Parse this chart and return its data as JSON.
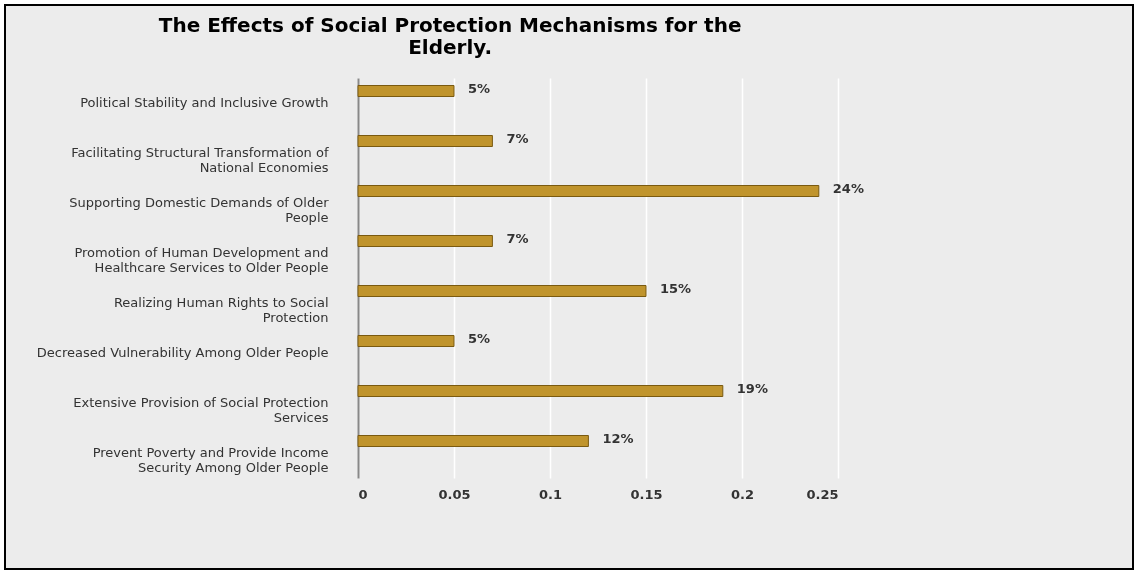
{
  "chart_data": {
    "type": "bar",
    "orientation": "horizontal",
    "title": "The Effects of Social Protection Mechanisms for the Elderly.",
    "categories": [
      "Political Stability and Inclusive Growth",
      "Facilitating Structural Transformation of National Economies",
      "Supporting Domestic Demands of Older People",
      "Promotion of Human Development and Healthcare Services to Older People",
      "Realizing Human Rights to Social Protection",
      "Decreased Vulnerability Among Older People",
      "Extensive Provision of Social Protection Services",
      "Prevent Poverty and Provide Income Security Among Older People"
    ],
    "values": [
      0.05,
      0.07,
      0.24,
      0.07,
      0.15,
      0.05,
      0.19,
      0.12
    ],
    "value_labels": [
      "5%",
      "7%",
      "24%",
      "7%",
      "15%",
      "5%",
      "19%",
      "12%"
    ],
    "color": "#c0942c",
    "xlim": [
      0,
      0.25
    ],
    "xticks": [
      0,
      0.05,
      0.1,
      0.15,
      0.2,
      0.25
    ],
    "grid": "x"
  }
}
